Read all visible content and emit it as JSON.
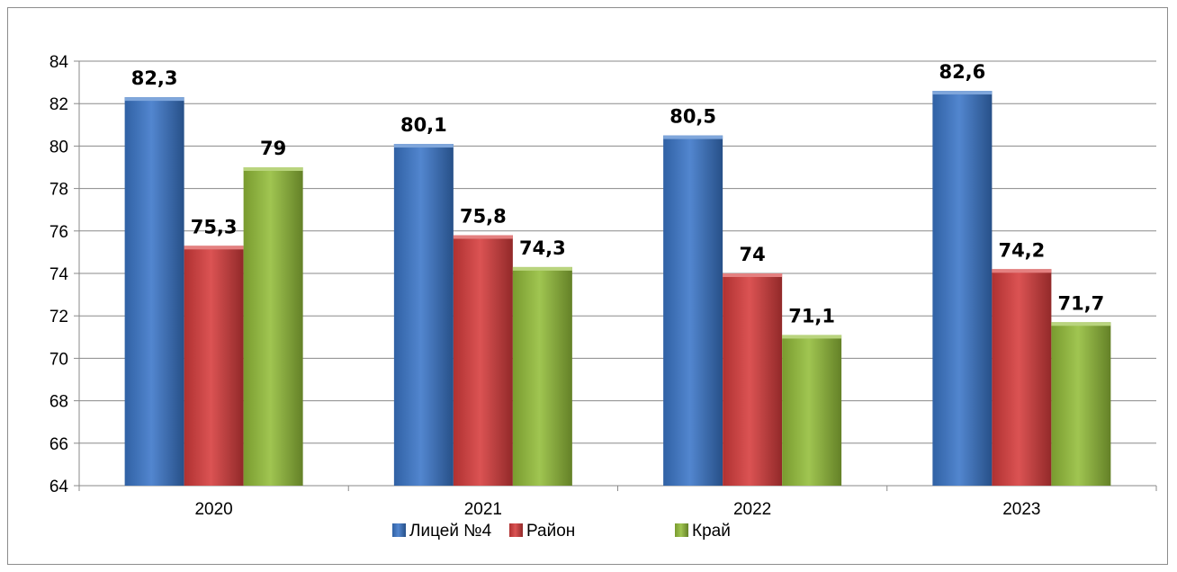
{
  "chart_data": {
    "type": "bar",
    "categories": [
      "2020",
      "2021",
      "2022",
      "2023"
    ],
    "series": [
      {
        "name": "Лицей №4",
        "values": [
          82.3,
          80.1,
          80.5,
          82.6
        ],
        "color": "#3a76c8",
        "labels": [
          "82,3",
          "80,1",
          "80,5",
          "82,6"
        ]
      },
      {
        "name": "Район",
        "values": [
          75.3,
          75.8,
          74,
          74.2
        ],
        "color": "#d63c3c",
        "labels": [
          "75,3",
          "75,8",
          "74",
          "74,2"
        ]
      },
      {
        "name": "Край",
        "values": [
          79,
          74.3,
          71.1,
          71.7
        ],
        "color": "#93bd39",
        "labels": [
          "79",
          "74,3",
          "71,1",
          "71,7"
        ]
      }
    ],
    "ylim": [
      64,
      84
    ],
    "yticks": [
      64,
      66,
      68,
      70,
      72,
      74,
      76,
      78,
      80,
      82,
      84
    ],
    "grid": true,
    "legend_position": "bottom",
    "title": "",
    "xlabel": "",
    "ylabel": ""
  }
}
